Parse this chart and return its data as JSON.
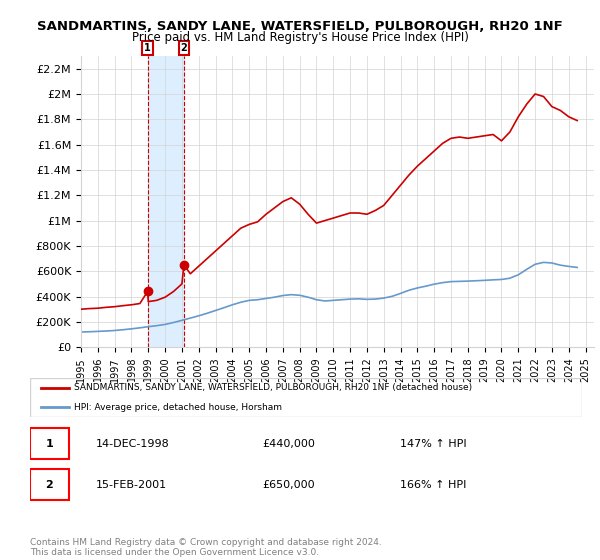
{
  "title": "SANDMARTINS, SANDY LANE, WATERSFIELD, PULBOROUGH, RH20 1NF",
  "subtitle": "Price paid vs. HM Land Registry's House Price Index (HPI)",
  "legend_line1": "SANDMARTINS, SANDY LANE, WATERSFIELD, PULBOROUGH, RH20 1NF (detached house)",
  "legend_line2": "HPI: Average price, detached house, Horsham",
  "transaction1": {
    "label": "1",
    "date": "14-DEC-1998",
    "price": "£440,000",
    "hpi": "147% ↑ HPI"
  },
  "transaction2": {
    "label": "2",
    "date": "15-FEB-2001",
    "price": "£650,000",
    "hpi": "166% ↑ HPI"
  },
  "footer": "Contains HM Land Registry data © Crown copyright and database right 2024.\nThis data is licensed under the Open Government Licence v3.0.",
  "red_color": "#cc0000",
  "blue_color": "#6699cc",
  "shaded_color": "#ddeeff",
  "ylim": [
    0,
    2300000
  ],
  "yticks": [
    0,
    200000,
    400000,
    600000,
    800000,
    1000000,
    1200000,
    1400000,
    1600000,
    1800000,
    2000000,
    2200000
  ],
  "ytick_labels": [
    "£0",
    "£200K",
    "£400K",
    "£600K",
    "£800K",
    "£1M",
    "£1.2M",
    "£1.4M",
    "£1.6M",
    "£1.8M",
    "£2M",
    "£2.2M"
  ],
  "xmin": 1995.0,
  "xmax": 2025.5,
  "transaction1_x": 1998.96,
  "transaction1_y": 440000,
  "transaction2_x": 2001.12,
  "transaction2_y": 650000,
  "red_x": [
    1995.0,
    1995.5,
    1996.0,
    1996.5,
    1997.0,
    1997.5,
    1998.0,
    1998.5,
    1998.96,
    1999.0,
    1999.5,
    2000.0,
    2000.5,
    2001.0,
    2001.12,
    2001.5,
    2002.0,
    2002.5,
    2003.0,
    2003.5,
    2004.0,
    2004.5,
    2005.0,
    2005.5,
    2006.0,
    2006.5,
    2007.0,
    2007.5,
    2008.0,
    2008.5,
    2009.0,
    2009.5,
    2010.0,
    2010.5,
    2011.0,
    2011.5,
    2012.0,
    2012.5,
    2013.0,
    2013.5,
    2014.0,
    2014.5,
    2015.0,
    2015.5,
    2016.0,
    2016.5,
    2017.0,
    2017.5,
    2018.0,
    2018.5,
    2019.0,
    2019.5,
    2020.0,
    2020.5,
    2021.0,
    2021.5,
    2022.0,
    2022.5,
    2023.0,
    2023.5,
    2024.0,
    2024.5
  ],
  "red_y": [
    300000,
    305000,
    308000,
    315000,
    320000,
    328000,
    335000,
    345000,
    440000,
    360000,
    370000,
    395000,
    440000,
    500000,
    650000,
    580000,
    640000,
    700000,
    760000,
    820000,
    880000,
    940000,
    970000,
    990000,
    1050000,
    1100000,
    1150000,
    1180000,
    1130000,
    1050000,
    980000,
    1000000,
    1020000,
    1040000,
    1060000,
    1060000,
    1050000,
    1080000,
    1120000,
    1200000,
    1280000,
    1360000,
    1430000,
    1490000,
    1550000,
    1610000,
    1650000,
    1660000,
    1650000,
    1660000,
    1670000,
    1680000,
    1630000,
    1700000,
    1820000,
    1920000,
    2000000,
    1980000,
    1900000,
    1870000,
    1820000,
    1790000
  ],
  "blue_x": [
    1995.0,
    1995.5,
    1996.0,
    1996.5,
    1997.0,
    1997.5,
    1998.0,
    1998.5,
    1999.0,
    1999.5,
    2000.0,
    2000.5,
    2001.0,
    2001.5,
    2002.0,
    2002.5,
    2003.0,
    2003.5,
    2004.0,
    2004.5,
    2005.0,
    2005.5,
    2006.0,
    2006.5,
    2007.0,
    2007.5,
    2008.0,
    2008.5,
    2009.0,
    2009.5,
    2010.0,
    2010.5,
    2011.0,
    2011.5,
    2012.0,
    2012.5,
    2013.0,
    2013.5,
    2014.0,
    2014.5,
    2015.0,
    2015.5,
    2016.0,
    2016.5,
    2017.0,
    2017.5,
    2018.0,
    2018.5,
    2019.0,
    2019.5,
    2020.0,
    2020.5,
    2021.0,
    2021.5,
    2022.0,
    2022.5,
    2023.0,
    2023.5,
    2024.0,
    2024.5
  ],
  "blue_y": [
    120000,
    122000,
    125000,
    128000,
    132000,
    138000,
    145000,
    153000,
    162000,
    170000,
    180000,
    195000,
    212000,
    230000,
    248000,
    268000,
    290000,
    312000,
    335000,
    355000,
    370000,
    375000,
    385000,
    395000,
    408000,
    415000,
    410000,
    395000,
    375000,
    365000,
    370000,
    375000,
    380000,
    382000,
    378000,
    380000,
    388000,
    402000,
    425000,
    450000,
    468000,
    482000,
    498000,
    510000,
    518000,
    520000,
    522000,
    525000,
    528000,
    532000,
    535000,
    545000,
    572000,
    615000,
    655000,
    670000,
    665000,
    648000,
    638000,
    630000
  ]
}
